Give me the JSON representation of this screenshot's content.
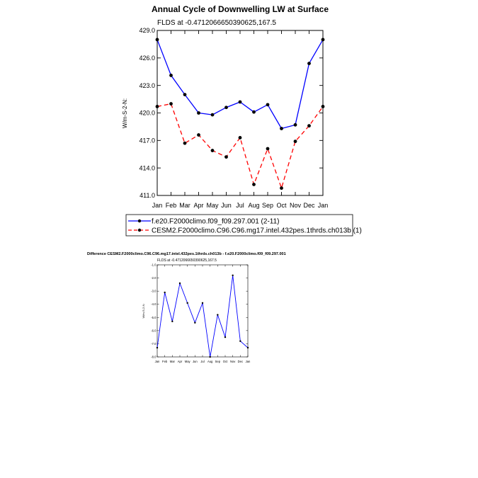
{
  "chart_data": [
    {
      "type": "line",
      "title": "Annual Cycle of Downwelling LW at Surface",
      "subtitle": "FLDS at -0.4712066650390625,167.5",
      "xlabel": "",
      "ylabel": "W/m-S-2-N:",
      "ylim": [
        411.0,
        429.0
      ],
      "yticks": [
        "429.0",
        "426.0",
        "423.0",
        "420.0",
        "417.0",
        "414.0",
        "411.0"
      ],
      "categories": [
        "Jan",
        "Feb",
        "Mar",
        "Apr",
        "May",
        "Jun",
        "Jul",
        "Aug",
        "Sep",
        "Oct",
        "Nov",
        "Dec",
        "Jan"
      ],
      "series": [
        {
          "name": "f.e20.F2000climo.f09_f09.297.001 (2-11)",
          "color": "#0000ff",
          "style": "solid",
          "values": [
            428.0,
            424.1,
            422.0,
            420.0,
            419.8,
            420.6,
            421.2,
            420.1,
            420.9,
            418.3,
            418.7,
            425.4,
            428.0
          ]
        },
        {
          "name": "CESM2.F2000climo.C96.C96.mg17.intel.432pes.1thrds.ch013b (1)",
          "color": "#ff0000",
          "style": "dashed",
          "values": [
            420.7,
            421.0,
            416.7,
            417.6,
            415.9,
            415.2,
            417.3,
            412.2,
            416.1,
            411.8,
            416.9,
            418.6,
            420.7
          ]
        }
      ]
    },
    {
      "type": "line",
      "title": "Difference CESM2.F2000climo.C96.C96.mg17.intel.432pes.1thrds.ch013b - f.e20.F2000climo.f09_f09.297.001",
      "subtitle": "FLDS at -0.4712066650390625,167.5",
      "ylabel": "W/m-S-2-N:",
      "ylim": [
        -8.0,
        -1.0
      ],
      "yticks": [
        "-1.0",
        "-2.0",
        "-3.0",
        "-4.0",
        "-5.0",
        "-6.0",
        "-7.0",
        "-8.0"
      ],
      "categories": [
        "Jan",
        "Feb",
        "Mar",
        "Apr",
        "May",
        "Jun",
        "Jul",
        "Aug",
        "Sep",
        "Oct",
        "Nov",
        "Dec",
        "Jan"
      ],
      "series": [
        {
          "name": "Difference",
          "color": "#0000ff",
          "style": "solid",
          "values": [
            -7.3,
            -3.1,
            -5.3,
            -2.4,
            -3.9,
            -5.4,
            -3.9,
            -8.0,
            -4.8,
            -6.5,
            -1.8,
            -6.8,
            -7.3
          ]
        }
      ]
    }
  ]
}
